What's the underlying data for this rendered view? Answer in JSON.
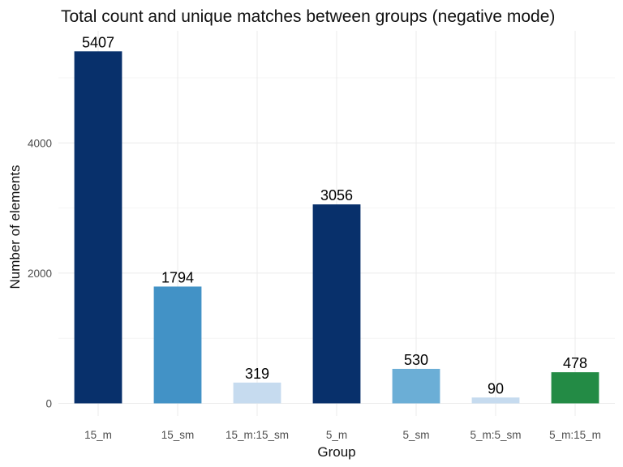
{
  "chart_data": {
    "type": "bar",
    "title": "Total count and unique matches between groups (negative mode)",
    "xlabel": "Group",
    "ylabel": "Number of elements",
    "categories": [
      "15_m",
      "15_sm",
      "15_m:15_sm",
      "5_m",
      "5_sm",
      "5_m:5_sm",
      "5_m:15_m"
    ],
    "values": [
      5407,
      1794,
      319,
      3056,
      530,
      90,
      478
    ],
    "colors": [
      "#08306b",
      "#4292c6",
      "#c6dbef",
      "#08306b",
      "#6baed6",
      "#c6dbef",
      "#238b45"
    ],
    "ylim": [
      0,
      5700
    ],
    "yticks": [
      0,
      2000,
      4000
    ],
    "grid": true,
    "legend": "none"
  }
}
